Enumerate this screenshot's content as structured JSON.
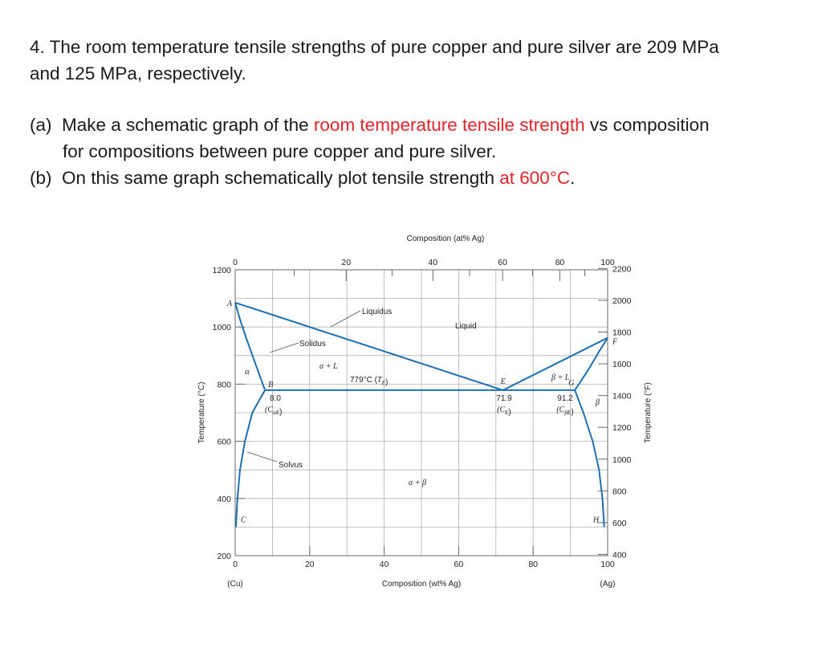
{
  "question": {
    "p1_line1": "4. The room temperature tensile strengths of pure copper and pure silver are 209 MPa",
    "p1_line2": "and 125 MPa, respectively.",
    "a_prefix": "(a)  Make a schematic graph of the ",
    "a_highlight": "room temperature tensile strength",
    "a_suffix": " vs composition",
    "a_line2": "for compositions between pure copper and pure silver.",
    "b_prefix": "(b)  On this same graph schematically plot tensile strength ",
    "b_highlight": "at 600°C",
    "b_suffix": "."
  },
  "colors": {
    "highlight": "#e0262b",
    "phase_line": "#1f6fb0",
    "grid": "#b0b0b0",
    "frame": "#6a6a6a"
  },
  "chart_data": {
    "type": "line",
    "subtype": "binary-phase-diagram",
    "title": "",
    "top_axis": {
      "label": "Composition (at% Ag)",
      "ticks": [
        "0",
        "20",
        "40",
        "60",
        "80",
        "100"
      ]
    },
    "bottom_axis": {
      "label": "Composition (wt% Ag)",
      "ticks": [
        "0",
        "20",
        "40",
        "60",
        "80",
        "100"
      ],
      "left_end": "(Cu)",
      "right_end": "(Ag)"
    },
    "left_axis": {
      "label": "Temperature (°C)",
      "ticks": [
        "200",
        "400",
        "600",
        "800",
        "1000",
        "1200"
      ],
      "ylim": [
        200,
        1200
      ]
    },
    "right_axis": {
      "label": "Temperature (°F)",
      "ticks": [
        "400",
        "600",
        "800",
        "1000",
        "1200",
        "1400",
        "1600",
        "1800",
        "2000",
        "2200"
      ]
    },
    "x_range_wt": [
      0,
      100
    ],
    "y_range_c": [
      200,
      1200
    ],
    "grid": true,
    "series": [
      {
        "id": "liquidus-left",
        "points": [
          [
            0,
            1085
          ],
          [
            71.9,
            779
          ]
        ]
      },
      {
        "id": "liquidus-right",
        "points": [
          [
            71.9,
            779
          ],
          [
            100,
            962
          ]
        ]
      },
      {
        "id": "eutectic-isotherm",
        "points": [
          [
            8.0,
            779
          ],
          [
            91.2,
            779
          ]
        ]
      },
      {
        "id": "solidus-alpha",
        "points": [
          [
            0,
            1085
          ],
          [
            1.2,
            1030
          ],
          [
            3.0,
            960
          ],
          [
            5.2,
            880
          ],
          [
            8.0,
            779
          ]
        ]
      },
      {
        "id": "solvus-alpha",
        "points": [
          [
            8.0,
            779
          ],
          [
            4.6,
            700
          ],
          [
            2.6,
            600
          ],
          [
            1.3,
            500
          ],
          [
            0.6,
            400
          ],
          [
            0.2,
            300
          ]
        ]
      },
      {
        "id": "solidus-beta",
        "points": [
          [
            91.2,
            779
          ],
          [
            94.8,
            850
          ],
          [
            97.5,
            910
          ],
          [
            100,
            962
          ]
        ]
      },
      {
        "id": "solvus-beta",
        "points": [
          [
            91.2,
            779
          ],
          [
            93.5,
            700
          ],
          [
            96.0,
            600
          ],
          [
            97.7,
            500
          ],
          [
            98.6,
            400
          ],
          [
            99.1,
            300
          ]
        ]
      }
    ],
    "points": [
      {
        "label": "A",
        "x": 0,
        "y": 1085
      },
      {
        "label": "B",
        "x": 8.0,
        "y": 779
      },
      {
        "label": "C",
        "x": 0.2,
        "y": 300
      },
      {
        "label": "E",
        "x": 71.9,
        "y": 779
      },
      {
        "label": "F",
        "x": 100,
        "y": 962
      },
      {
        "label": "G",
        "x": 91.2,
        "y": 779
      },
      {
        "label": "H",
        "x": 99.1,
        "y": 300
      }
    ],
    "annotations": {
      "liquidus": "Liquidus",
      "solidus": "Solidus",
      "solvus": "Solvus",
      "liquid": "Liquid",
      "alpha": "α",
      "beta": "β",
      "alpha_plus_l": "α + L",
      "beta_plus_l": "β + L",
      "alpha_plus_beta": "α + β",
      "eutectic_label_value": "779°C (",
      "eutectic_label_symbol": "T",
      "eutectic_label_sub": "E",
      "eutectic_label_end": ")",
      "c_alpha_e_value": "8.0",
      "c_alpha_e_symbol": "(C",
      "c_alpha_e_sub": "αE",
      "c_alpha_e_end": ")",
      "c_e_value": "71.9",
      "c_e_symbol": "(C",
      "c_e_sub": "E",
      "c_e_end": ")",
      "c_beta_e_value": "91.2",
      "c_beta_e_symbol": "(C",
      "c_beta_e_sub": "βE",
      "c_beta_e_end": ")"
    }
  }
}
